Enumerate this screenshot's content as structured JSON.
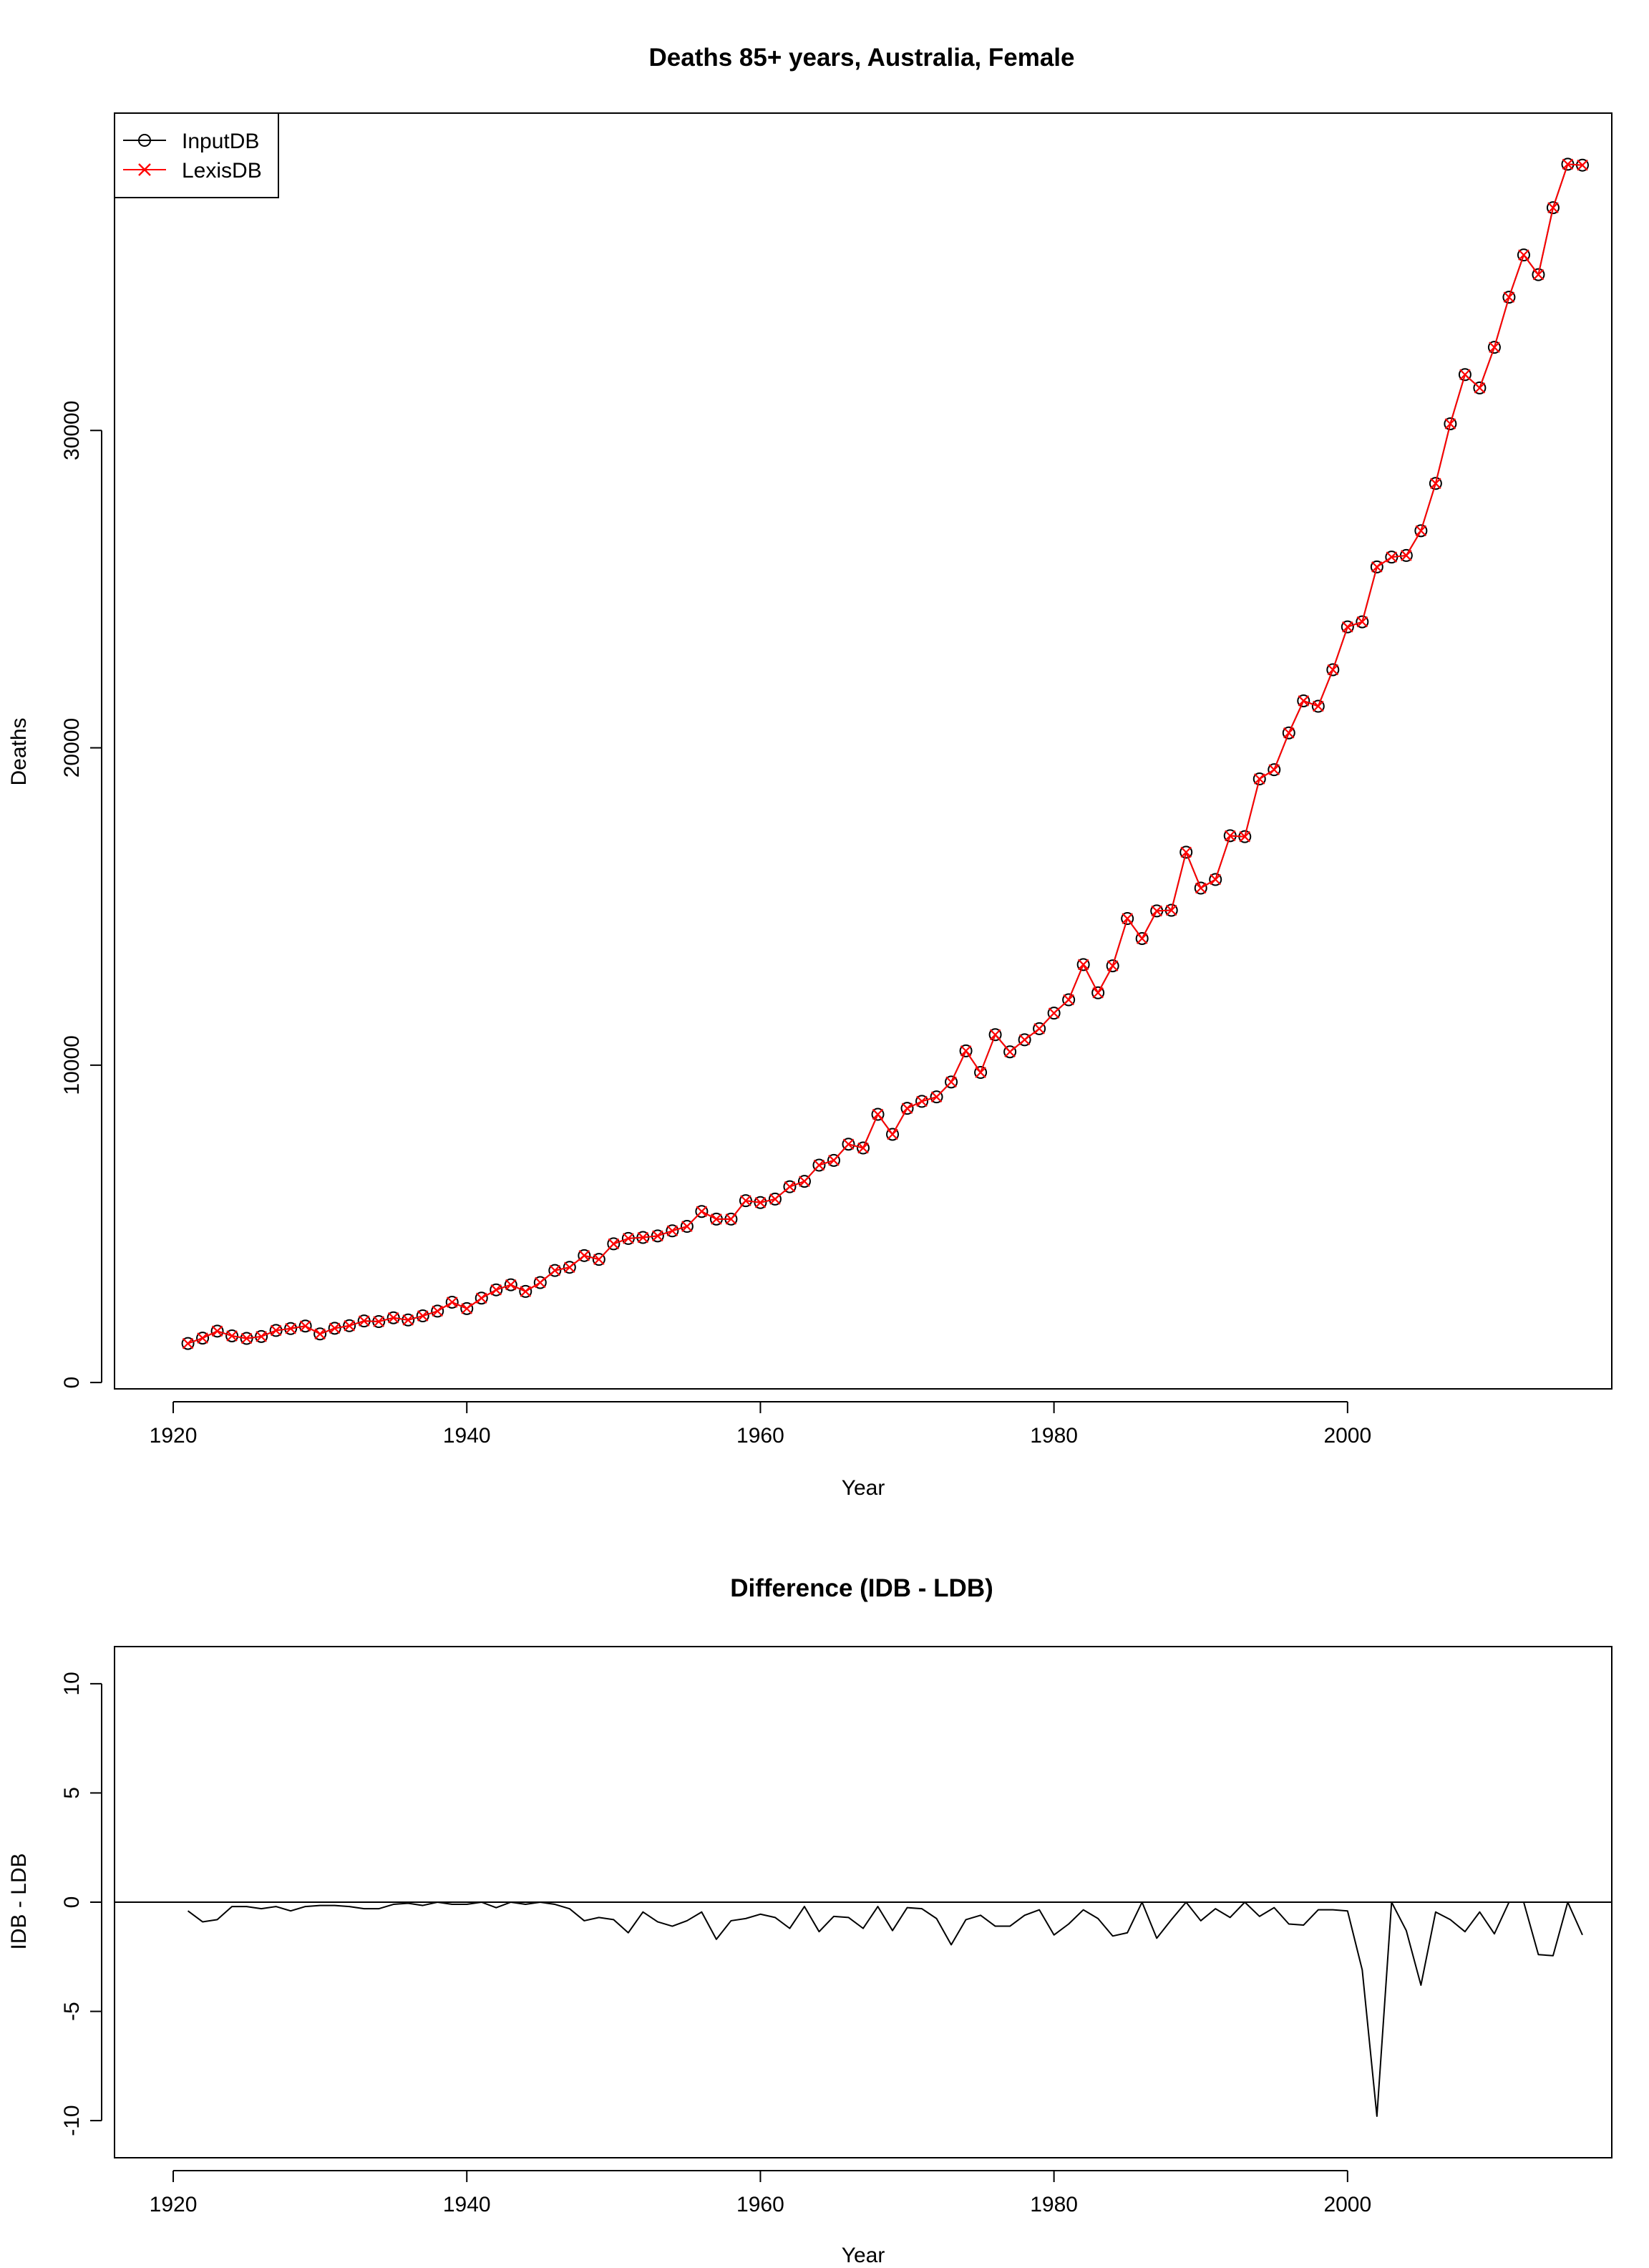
{
  "chart_data": [
    {
      "type": "line",
      "title": "Deaths 85+ years, Australia, Female",
      "xlabel": "Year",
      "ylabel": "Deaths",
      "xlim": [
        1916,
        2018
      ],
      "ylim": [
        -200,
        40000
      ],
      "xticks": [
        1920,
        1940,
        1960,
        1980,
        2000
      ],
      "xtick_labels": [
        "1920",
        "1940",
        "1960",
        "1980",
        "2000"
      ],
      "yticks": [
        0,
        10000,
        20000,
        30000
      ],
      "ytick_labels": [
        "0",
        "10000",
        "20000",
        "30000"
      ],
      "grid": false,
      "legend_position": "top-left",
      "x": [
        1921,
        1922,
        1923,
        1924,
        1925,
        1926,
        1927,
        1928,
        1929,
        1930,
        1931,
        1932,
        1933,
        1934,
        1935,
        1936,
        1937,
        1938,
        1939,
        1940,
        1941,
        1942,
        1943,
        1944,
        1945,
        1946,
        1947,
        1948,
        1949,
        1950,
        1951,
        1952,
        1953,
        1954,
        1955,
        1956,
        1957,
        1958,
        1959,
        1960,
        1961,
        1962,
        1963,
        1964,
        1965,
        1966,
        1967,
        1968,
        1969,
        1970,
        1971,
        1972,
        1973,
        1974,
        1975,
        1976,
        1977,
        1978,
        1979,
        1980,
        1981,
        1982,
        1983,
        1984,
        1985,
        1986,
        1987,
        1988,
        1989,
        1990,
        1991,
        1992,
        1993,
        1994,
        1995,
        1996,
        1997,
        1998,
        1999,
        2000,
        2001,
        2002,
        2003,
        2004,
        2005,
        2006,
        2007,
        2008,
        2009,
        2010,
        2011,
        2012,
        2013,
        2014,
        2015,
        2016
      ],
      "series": [
        {
          "name": "InputDB",
          "color": "#000000",
          "marker": "circle",
          "values": [
            1230,
            1400,
            1620,
            1470,
            1390,
            1450,
            1640,
            1700,
            1780,
            1530,
            1710,
            1790,
            1940,
            1920,
            2040,
            1970,
            2100,
            2250,
            2530,
            2330,
            2660,
            2920,
            3080,
            2870,
            3150,
            3530,
            3630,
            4000,
            3880,
            4370,
            4540,
            4570,
            4620,
            4780,
            4920,
            5390,
            5150,
            5150,
            5730,
            5670,
            5780,
            6170,
            6340,
            6850,
            7000,
            7510,
            7390,
            8450,
            7820,
            8640,
            8860,
            9000,
            9470,
            10450,
            9770,
            10960,
            10420,
            10800,
            11150,
            11640,
            12060,
            13170,
            12280,
            13130,
            14620,
            13990,
            14860,
            14880,
            16710,
            15580,
            15850,
            17230,
            17200,
            19020,
            19310,
            20470,
            21480,
            21310,
            22460,
            23810,
            23970,
            25700,
            26010,
            26060,
            26840,
            28330,
            30210,
            31760,
            31340,
            32620,
            34200,
            35530,
            34910,
            37020,
            38390,
            38360
          ]
        },
        {
          "name": "LexisDB",
          "color": "#ff0000",
          "marker": "x",
          "values": [
            1230,
            1400,
            1620,
            1470,
            1390,
            1450,
            1640,
            1700,
            1780,
            1530,
            1710,
            1790,
            1940,
            1920,
            2040,
            1970,
            2100,
            2250,
            2530,
            2330,
            2660,
            2920,
            3080,
            2870,
            3150,
            3530,
            3630,
            4000,
            3880,
            4370,
            4540,
            4570,
            4620,
            4780,
            4920,
            5390,
            5150,
            5150,
            5730,
            5670,
            5780,
            6170,
            6340,
            6850,
            7000,
            7510,
            7390,
            8450,
            7820,
            8640,
            8860,
            9000,
            9470,
            10450,
            9770,
            10960,
            10420,
            10800,
            11150,
            11640,
            12060,
            13170,
            12280,
            13130,
            14620,
            13990,
            14860,
            14880,
            16710,
            15580,
            15850,
            17230,
            17200,
            19020,
            19310,
            20470,
            21480,
            21310,
            22460,
            23810,
            23970,
            25700,
            26010,
            26060,
            26840,
            28330,
            30210,
            31760,
            31340,
            32620,
            34200,
            35530,
            34910,
            37020,
            38390,
            38360
          ]
        }
      ]
    },
    {
      "type": "line",
      "title": "Difference (IDB - LDB)",
      "xlabel": "Year",
      "ylabel": "IDB - LDB",
      "xlim": [
        1916,
        2018
      ],
      "ylim": [
        -11.7,
        11.7
      ],
      "xticks": [
        1920,
        1940,
        1960,
        1980,
        2000
      ],
      "xtick_labels": [
        "1920",
        "1940",
        "1960",
        "1980",
        "2000"
      ],
      "yticks": [
        -10,
        -5,
        0,
        5,
        10
      ],
      "ytick_labels": [
        "-10",
        "-5",
        "0",
        "5",
        "10"
      ],
      "reference_line_y": 0,
      "grid": false,
      "x": [
        1921,
        1922,
        1923,
        1924,
        1925,
        1926,
        1927,
        1928,
        1929,
        1930,
        1931,
        1932,
        1933,
        1934,
        1935,
        1936,
        1937,
        1938,
        1939,
        1940,
        1941,
        1942,
        1943,
        1944,
        1945,
        1946,
        1947,
        1948,
        1949,
        1950,
        1951,
        1952,
        1953,
        1954,
        1955,
        1956,
        1957,
        1958,
        1959,
        1960,
        1961,
        1962,
        1963,
        1964,
        1965,
        1966,
        1967,
        1968,
        1969,
        1970,
        1971,
        1972,
        1973,
        1974,
        1975,
        1976,
        1977,
        1978,
        1979,
        1980,
        1981,
        1982,
        1983,
        1984,
        1985,
        1986,
        1987,
        1988,
        1989,
        1990,
        1991,
        1992,
        1993,
        1994,
        1995,
        1996,
        1997,
        1998,
        1999,
        2000,
        2001,
        2002,
        2003,
        2004,
        2005,
        2006,
        2007,
        2008,
        2009,
        2010,
        2011,
        2012,
        2013,
        2014,
        2015,
        2016
      ],
      "series": [
        {
          "color": "#000000",
          "values": [
            -0.4,
            -0.9,
            -0.8,
            -0.2,
            -0.2,
            -0.3,
            -0.2,
            -0.4,
            -0.2,
            -0.15,
            -0.15,
            -0.2,
            -0.3,
            -0.3,
            -0.1,
            -0.05,
            -0.15,
            0.0,
            -0.1,
            -0.1,
            0.0,
            -0.25,
            0.0,
            -0.1,
            0.0,
            -0.1,
            -0.3,
            -0.85,
            -0.7,
            -0.8,
            -1.4,
            -0.45,
            -0.9,
            -1.1,
            -0.85,
            -0.45,
            -1.7,
            -0.85,
            -0.75,
            -0.55,
            -0.7,
            -1.2,
            -0.2,
            -1.35,
            -0.65,
            -0.7,
            -1.2,
            -0.2,
            -1.3,
            -0.25,
            -0.3,
            -0.75,
            -1.95,
            -0.8,
            -0.6,
            -1.1,
            -1.1,
            -0.6,
            -0.35,
            -1.5,
            -1.0,
            -0.35,
            -0.75,
            -1.55,
            -1.4,
            0.0,
            -1.65,
            -0.8,
            0.0,
            -0.85,
            -0.3,
            -0.7,
            0.0,
            -0.65,
            -0.25,
            -1.0,
            -1.05,
            -0.35,
            -0.35,
            -0.4,
            -3.1,
            -9.8,
            0.0,
            -1.3,
            -3.8,
            -0.45,
            -0.8,
            -1.35,
            -0.45,
            -1.45,
            0.0,
            0.0,
            -2.4,
            -2.45,
            0.0,
            -1.5
          ]
        }
      ]
    }
  ]
}
